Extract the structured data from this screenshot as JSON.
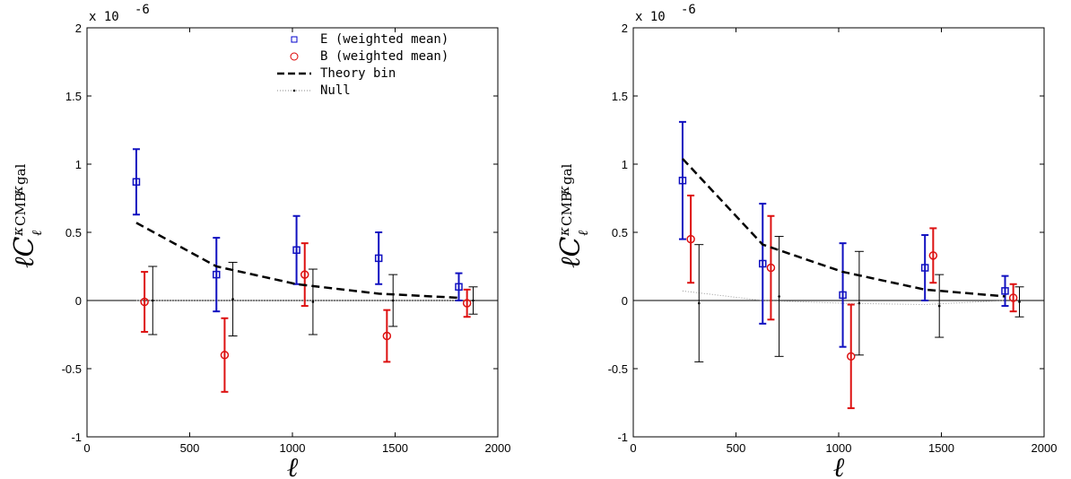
{
  "chart_data": [
    {
      "type": "scatter",
      "panel": "left",
      "xlabel": "ℓ",
      "ylabel": "ℓC",
      "ylabel_sub": "ℓ",
      "ylabel_sup": "κ",
      "ylabel_sup_cmb": "CMB",
      "ylabel_sup_gal": "κ",
      "ylabel_sup_gal_sub": "gal",
      "multiplier_label": "x 10",
      "multiplier_exp": "-6",
      "xlim": [
        0,
        2000
      ],
      "ylim": [
        -1,
        2
      ],
      "xticks": [
        "0",
        "500",
        "1000",
        "1500",
        "2000"
      ],
      "yticks": [
        "-1",
        "-0.5",
        "0",
        "0.5",
        "1",
        "1.5",
        "2"
      ],
      "xtick_values": [
        0,
        500,
        1000,
        1500,
        2000
      ],
      "ytick_values": [
        -1,
        -0.5,
        0,
        0.5,
        1,
        1.5,
        2
      ],
      "legend": {
        "position": "top-right",
        "entries": [
          {
            "label": "E (weighted mean)",
            "marker": "square",
            "color": "#0000cc"
          },
          {
            "label": "B (weighted mean)",
            "marker": "circle",
            "color": "#dd0000"
          },
          {
            "label": "Theory bin",
            "marker": "dashed-line",
            "color": "#000000"
          },
          {
            "label": "Null",
            "marker": "dotted-line",
            "color": "#888888"
          }
        ]
      },
      "series": [
        {
          "name": "E (weighted mean)",
          "color": "#1010c0",
          "marker": "square",
          "points": [
            {
              "x": 240,
              "y": 0.87,
              "err": 0.24
            },
            {
              "x": 630,
              "y": 0.19,
              "err": 0.27
            },
            {
              "x": 1020,
              "y": 0.37,
              "err": 0.25
            },
            {
              "x": 1420,
              "y": 0.31,
              "err": 0.19
            },
            {
              "x": 1810,
              "y": 0.1,
              "err": 0.1
            }
          ]
        },
        {
          "name": "B (weighted mean)",
          "color": "#dd1111",
          "marker": "circle",
          "points": [
            {
              "x": 280,
              "y": -0.01,
              "err": 0.22
            },
            {
              "x": 670,
              "y": -0.4,
              "err": 0.27
            },
            {
              "x": 1060,
              "y": 0.19,
              "err": 0.23
            },
            {
              "x": 1460,
              "y": -0.26,
              "err": 0.19
            },
            {
              "x": 1850,
              "y": -0.02,
              "err": 0.1
            }
          ]
        },
        {
          "name": "Null",
          "color": "#000000",
          "marker": "dot",
          "points": [
            {
              "x": 320,
              "y": 0.0,
              "err": 0.25
            },
            {
              "x": 710,
              "y": 0.01,
              "err": 0.27
            },
            {
              "x": 1100,
              "y": -0.01,
              "err": 0.24
            },
            {
              "x": 1490,
              "y": 0.0,
              "err": 0.19
            },
            {
              "x": 1880,
              "y": 0.0,
              "err": 0.1
            }
          ]
        },
        {
          "name": "Theory bin",
          "color": "#000000",
          "style": "dashed",
          "x": [
            240,
            630,
            1020,
            1420,
            1810
          ],
          "y": [
            0.57,
            0.25,
            0.12,
            0.05,
            0.02
          ]
        }
      ],
      "null_line": {
        "x": [
          240,
          630,
          1020,
          1420,
          1810
        ],
        "y": [
          0.0,
          0.0,
          0.0,
          0.0,
          0.0
        ]
      }
    },
    {
      "type": "scatter",
      "panel": "right",
      "xlabel": "ℓ",
      "ylabel": "ℓC",
      "ylabel_sub": "ℓ",
      "ylabel_sup": "κ",
      "ylabel_sup_cmb": "CMB",
      "ylabel_sup_gal": "κ",
      "ylabel_sup_gal_sub": "gal",
      "multiplier_label": "x 10",
      "multiplier_exp": "-6",
      "xlim": [
        0,
        2000
      ],
      "ylim": [
        -1,
        2
      ],
      "xticks": [
        "0",
        "500",
        "1000",
        "1500",
        "2000"
      ],
      "yticks": [
        "-1",
        "-0.5",
        "0",
        "0.5",
        "1",
        "1.5",
        "2"
      ],
      "xtick_values": [
        0,
        500,
        1000,
        1500,
        2000
      ],
      "ytick_values": [
        -1,
        -0.5,
        0,
        0.5,
        1,
        1.5,
        2
      ],
      "series": [
        {
          "name": "E (weighted mean)",
          "color": "#1010c0",
          "marker": "square",
          "points": [
            {
              "x": 240,
              "y": 0.88,
              "err": 0.43
            },
            {
              "x": 630,
              "y": 0.27,
              "err": 0.44
            },
            {
              "x": 1020,
              "y": 0.04,
              "err": 0.38
            },
            {
              "x": 1420,
              "y": 0.24,
              "err": 0.24
            },
            {
              "x": 1810,
              "y": 0.07,
              "err": 0.11
            }
          ]
        },
        {
          "name": "B (weighted mean)",
          "color": "#dd1111",
          "marker": "circle",
          "points": [
            {
              "x": 280,
              "y": 0.45,
              "err": 0.32
            },
            {
              "x": 670,
              "y": 0.24,
              "err": 0.38
            },
            {
              "x": 1060,
              "y": -0.41,
              "err": 0.38
            },
            {
              "x": 1460,
              "y": 0.33,
              "err": 0.2
            },
            {
              "x": 1850,
              "y": 0.02,
              "err": 0.1
            }
          ]
        },
        {
          "name": "Null",
          "color": "#000000",
          "marker": "dot",
          "points": [
            {
              "x": 320,
              "y": -0.02,
              "err": 0.43
            },
            {
              "x": 710,
              "y": 0.03,
              "err": 0.44
            },
            {
              "x": 1100,
              "y": -0.02,
              "err": 0.38
            },
            {
              "x": 1490,
              "y": -0.04,
              "err": 0.23
            },
            {
              "x": 1880,
              "y": -0.01,
              "err": 0.11
            }
          ]
        },
        {
          "name": "Theory bin",
          "color": "#000000",
          "style": "dashed",
          "x": [
            240,
            630,
            1020,
            1420,
            1810
          ],
          "y": [
            1.04,
            0.41,
            0.21,
            0.08,
            0.03
          ]
        }
      ],
      "null_line": {
        "x": [
          240,
          630,
          1020,
          1420,
          1810
        ],
        "y": [
          0.07,
          0.0,
          -0.02,
          -0.03,
          0.0
        ]
      }
    }
  ]
}
